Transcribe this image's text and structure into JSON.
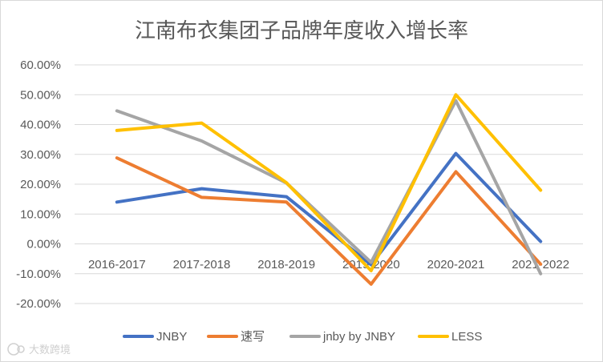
{
  "chart_data": {
    "type": "line",
    "title": "江南布衣集团子品牌年度收入增长率",
    "categories": [
      "2016-2017",
      "2017-2018",
      "2018-2019",
      "2019-2020",
      "2020-2021",
      "2021-2022"
    ],
    "y_ticks": [
      "60.00%",
      "50.00%",
      "40.00%",
      "30.00%",
      "20.00%",
      "10.00%",
      "0.00%",
      "-10.00%",
      "-20.00%"
    ],
    "ylim": [
      -20,
      60
    ],
    "grid": true,
    "legend_position": "bottom",
    "series": [
      {
        "name": "JNBY",
        "color": "#4472C4",
        "values": [
          14.0,
          18.5,
          15.8,
          -7.0,
          30.3,
          0.8
        ]
      },
      {
        "name": "速写",
        "color": "#ED7D31",
        "values": [
          28.8,
          15.6,
          14.0,
          -13.5,
          24.2,
          -6.8
        ]
      },
      {
        "name": "jnby by JNBY",
        "color": "#A5A5A5",
        "values": [
          44.6,
          34.5,
          20.4,
          -6.2,
          48.0,
          -10.0
        ]
      },
      {
        "name": "LESS",
        "color": "#FFC000",
        "values": [
          38.0,
          40.5,
          20.5,
          -9.0,
          50.0,
          18.0
        ]
      }
    ]
  },
  "watermark": {
    "text": "大数跨境",
    "icon": "logo-icon"
  }
}
